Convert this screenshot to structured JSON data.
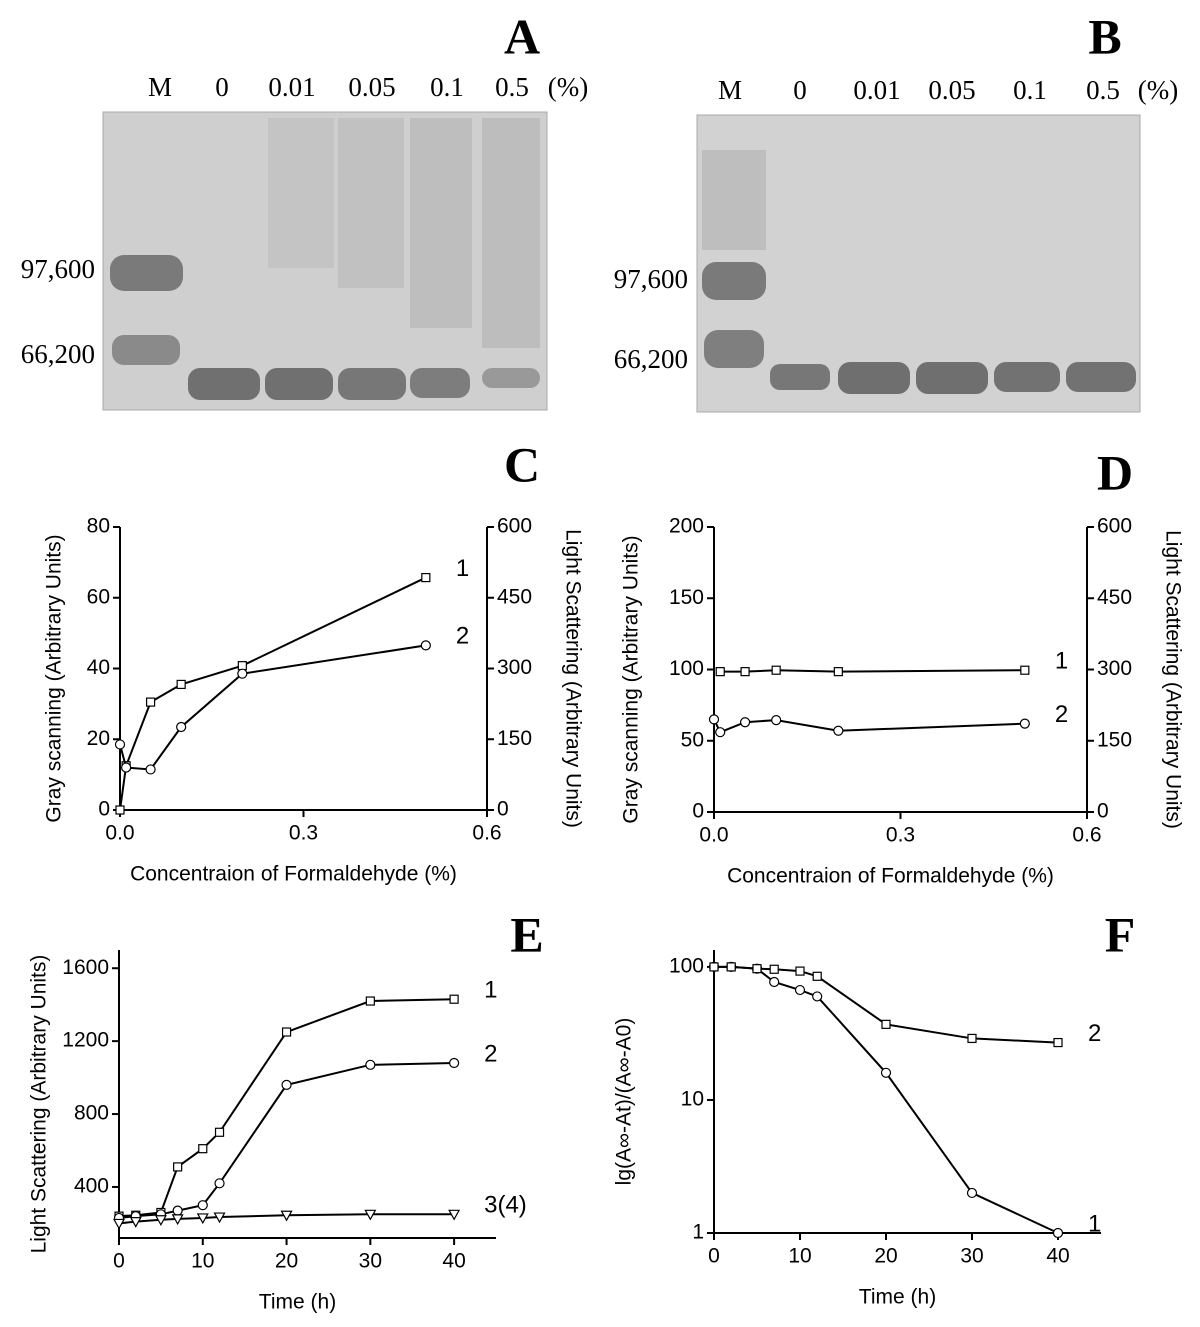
{
  "gels": [
    {
      "panel": "A",
      "lanes": [
        "M",
        "0",
        "0.01",
        "0.05",
        "0.1",
        "0.5",
        "(%)"
      ],
      "markers": [
        "97,600",
        "66,200"
      ]
    },
    {
      "panel": "B",
      "lanes": [
        "M",
        "0",
        "0.01",
        "0.05",
        "0.1",
        "0.5",
        "(%)"
      ],
      "markers": [
        "97,600",
        "66,200"
      ]
    }
  ],
  "chart_data": [
    {
      "type": "line",
      "panel": "C",
      "xlabel": "Concentraion of Formaldehyde (%)",
      "ylabel": "Gray scanning (Arbitrary Units)",
      "y2label": "Light Scattering (Arbitrary Units)",
      "xlim": [
        0,
        0.6
      ],
      "xticks": [
        {
          "value": 0,
          "label": "0.0"
        },
        0.3,
        0.6
      ],
      "ylim": [
        0,
        80
      ],
      "yticks": [
        0,
        20,
        40,
        60,
        80
      ],
      "y2lim": [
        0,
        600
      ],
      "y2ticks": [
        0,
        150,
        300,
        450,
        600
      ],
      "series": [
        {
          "name": "1",
          "color": "#000000",
          "marker": "square",
          "x": [
            0,
            0.01,
            0.05,
            0.1,
            0.2,
            0.5
          ],
          "values": [
            0,
            12.5,
            30.5,
            35.5,
            40.8,
            65.7
          ]
        },
        {
          "name": "2",
          "color": "#000000",
          "marker": "circle",
          "axis": "y2",
          "x": [
            0,
            0.01,
            0.05,
            0.1,
            0.2,
            0.5
          ],
          "values": [
            139,
            90,
            86,
            176,
            289,
            349
          ]
        }
      ]
    },
    {
      "type": "line",
      "panel": "D",
      "xlabel": "Concentraion of Formaldehyde (%)",
      "ylabel": "Gray scanning (Arbitrary Units)",
      "y2label": "Light Scattering (Arbitrary Units)",
      "xlim": [
        0,
        0.6
      ],
      "xticks": [
        {
          "value": 0,
          "label": "0.0"
        },
        0.3,
        0.6
      ],
      "ylim": [
        0,
        200
      ],
      "yticks": [
        0,
        50,
        100,
        150,
        200
      ],
      "y2lim": [
        0,
        600
      ],
      "y2ticks": [
        0,
        150,
        300,
        450,
        600
      ],
      "series": [
        {
          "name": "1",
          "color": "#000000",
          "marker": "square",
          "x": [
            0.01,
            0.05,
            0.1,
            0.2,
            0.5
          ],
          "values": [
            98.5,
            98.5,
            99.5,
            98.5,
            99.5
          ]
        },
        {
          "name": "2",
          "color": "#000000",
          "marker": "circle",
          "axis": "y2",
          "x": [
            0,
            0.01,
            0.05,
            0.1,
            0.2,
            0.5
          ],
          "values": [
            195,
            168,
            189,
            193.5,
            171,
            186
          ]
        }
      ]
    },
    {
      "type": "line",
      "panel": "E",
      "xlabel": "Time (h)",
      "ylabel": "Light Scattering (Arbitrary Units)",
      "xlim": [
        0,
        45
      ],
      "xticks": [
        0,
        10,
        20,
        30,
        40
      ],
      "ylim": [
        120,
        1700
      ],
      "yticks": [
        400,
        800,
        1200,
        1600
      ],
      "series": [
        {
          "name": "1",
          "color": "#000000",
          "marker": "square",
          "x": [
            0,
            2,
            5,
            7,
            10,
            12,
            20,
            30,
            40
          ],
          "values": [
            240,
            245,
            260,
            510,
            610,
            700,
            1250,
            1420,
            1430
          ]
        },
        {
          "name": "2",
          "color": "#000000",
          "marker": "circle",
          "x": [
            0,
            2,
            5,
            7,
            10,
            12,
            20,
            30,
            40
          ],
          "values": [
            230,
            240,
            250,
            270,
            300,
            420,
            960,
            1070,
            1080
          ]
        },
        {
          "name": "3(4)",
          "color": "#000000",
          "marker": "triangle",
          "x": [
            0,
            2,
            5,
            7,
            10,
            12,
            20,
            30,
            40
          ],
          "values": [
            200,
            210,
            220,
            225,
            230,
            235,
            245,
            250,
            250
          ]
        }
      ]
    },
    {
      "type": "line",
      "panel": "F",
      "xlabel": "Time (h)",
      "ylabel": "lg(A∞-At)/(A∞-A0)",
      "log_y": true,
      "xlim": [
        0,
        45
      ],
      "xticks": [
        0,
        10,
        20,
        30,
        40
      ],
      "ylim": [
        1,
        134
      ],
      "yticks": [
        1,
        10,
        100
      ],
      "series": [
        {
          "name": "1",
          "color": "#000000",
          "marker": "circle",
          "x": [
            0,
            2,
            5,
            7,
            10,
            12,
            20,
            30,
            40
          ],
          "values": [
            100,
            100,
            97,
            77,
            67,
            60,
            16,
            2,
            1
          ]
        },
        {
          "name": "2",
          "color": "#000000",
          "marker": "square",
          "x": [
            0,
            2,
            5,
            7,
            10,
            12,
            20,
            30,
            40
          ],
          "values": [
            100,
            100,
            97,
            96,
            93,
            85,
            37,
            29,
            27
          ]
        }
      ]
    }
  ]
}
